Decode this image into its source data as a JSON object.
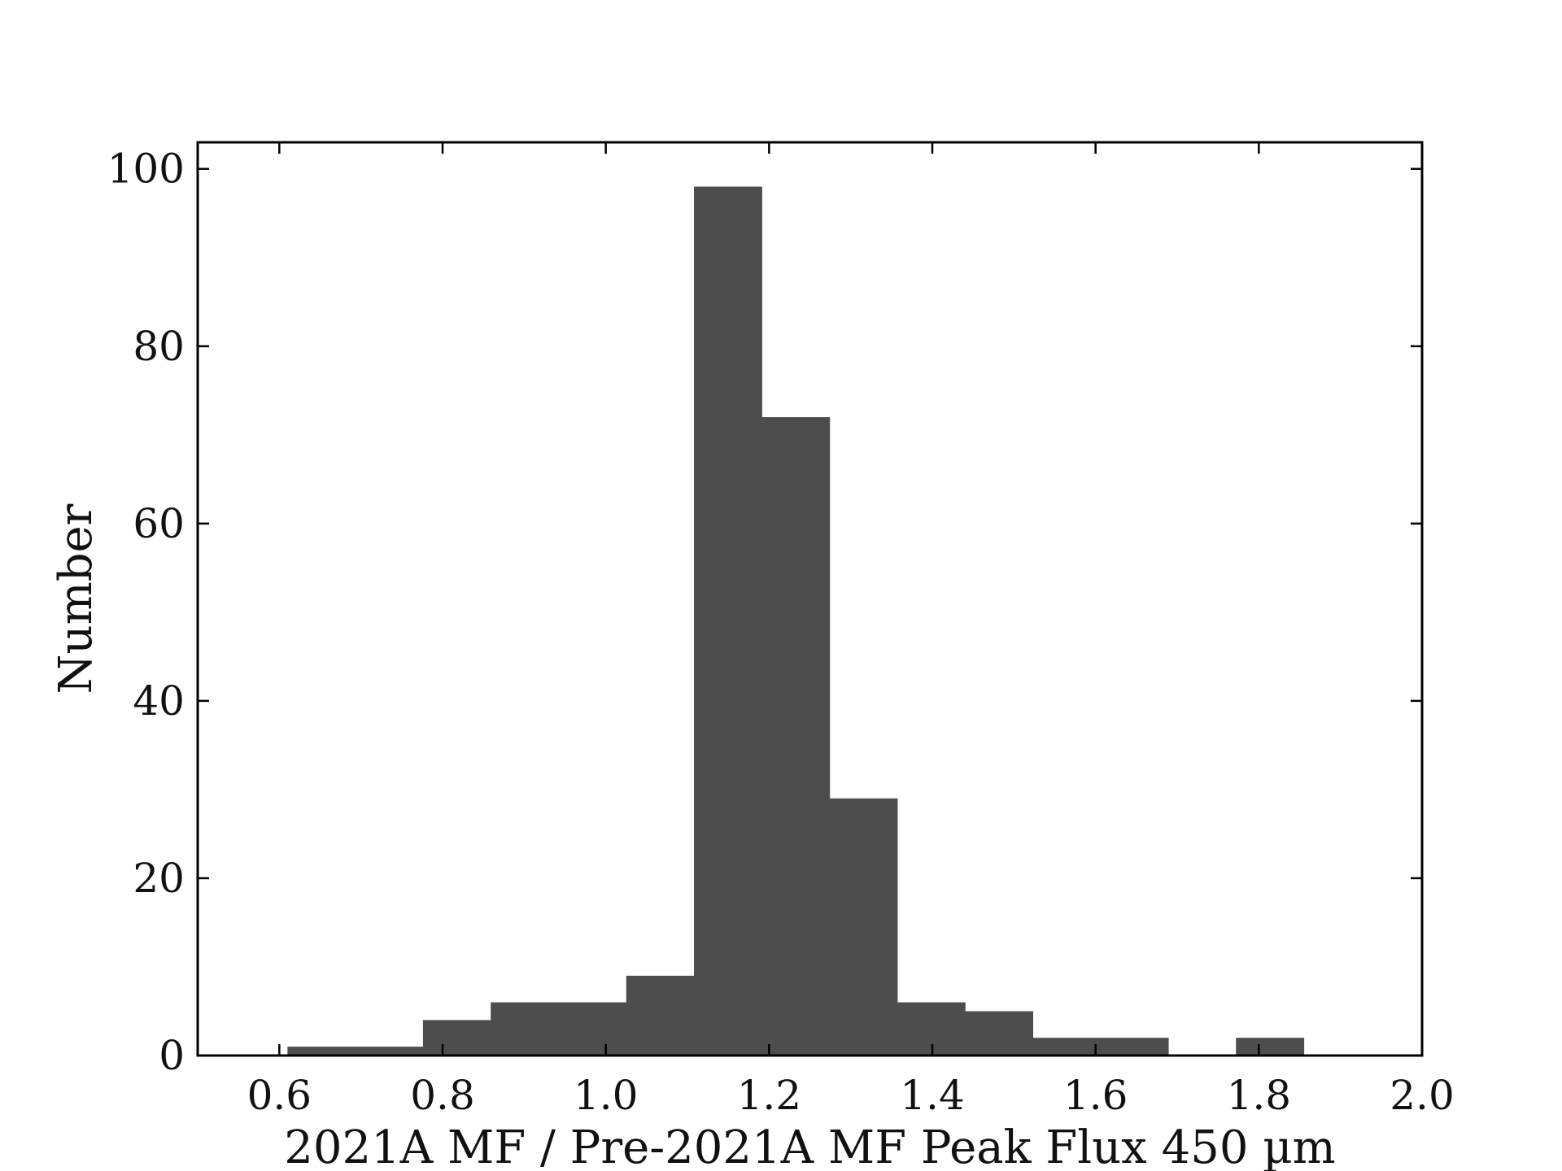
{
  "chart_data": {
    "type": "bar",
    "histogram": true,
    "title": "",
    "xlabel": "2021A MF / Pre-2021A MF Peak Flux 450 µm",
    "ylabel": "Number",
    "xlim": [
      0.5,
      2.0
    ],
    "ylim": [
      0,
      103
    ],
    "xticks": [
      0.6,
      0.8,
      1.0,
      1.2,
      1.4,
      1.6,
      1.8,
      2.0
    ],
    "xtick_labels": [
      "0.6",
      "0.8",
      "1.0",
      "1.2",
      "1.4",
      "1.6",
      "1.8",
      "2.0"
    ],
    "yticks": [
      0,
      20,
      40,
      60,
      80,
      100
    ],
    "ytick_labels": [
      "0",
      "20",
      "40",
      "60",
      "80",
      "100"
    ],
    "bin_edges": [
      0.61,
      0.693,
      0.776,
      0.859,
      0.942,
      1.025,
      1.108,
      1.191,
      1.274,
      1.357,
      1.44,
      1.523,
      1.606,
      1.689,
      1.772,
      1.855
    ],
    "counts": [
      1,
      1,
      4,
      6,
      6,
      9,
      98,
      72,
      29,
      6,
      5,
      2,
      2,
      0,
      2
    ],
    "bar_color": "#4d4d4d",
    "grid": false
  }
}
